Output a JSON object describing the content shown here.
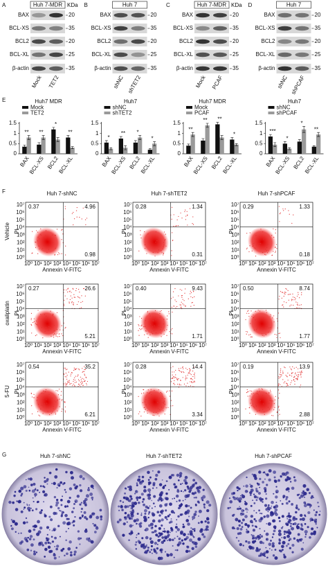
{
  "section_letters": {
    "e": "E",
    "f": "F",
    "g": "G"
  },
  "blots": {
    "panels": [
      {
        "letter": "A",
        "cell_line": "Huh 7-MDR",
        "unit": "KDa",
        "proteins": [
          "BAX",
          "BCL-XS",
          "BCL2",
          "BCL-XL",
          "β-actin"
        ],
        "markers": [
          20,
          35,
          20,
          25,
          35
        ],
        "lanes": [
          "Mock",
          "TET2"
        ]
      },
      {
        "letter": "B",
        "cell_line": "Huh 7",
        "proteins": [
          "BAX",
          "BCL-XS",
          "BCL2",
          "BCL-XL",
          "β-actin"
        ],
        "markers": [
          20,
          35,
          20,
          25,
          35
        ],
        "lanes": [
          "shNC",
          "shTET2"
        ]
      },
      {
        "letter": "C",
        "cell_line": "Huh 7-MDR",
        "unit": "KDa",
        "proteins": [
          "BAX",
          "BCL-XS",
          "BCL2",
          "BCL-XL",
          "β-actin"
        ],
        "markers": [
          20,
          35,
          20,
          25,
          35
        ],
        "lanes": [
          "Mock",
          "PCAF"
        ]
      },
      {
        "letter": "D",
        "cell_line": "Huh 7",
        "proteins": [
          "BAX",
          "BCL-XS",
          "BCL2",
          "BCL-XL",
          "β-actin"
        ],
        "markers": [
          20,
          35,
          20,
          25,
          35
        ],
        "lanes": [
          "shNC",
          "shPCAF"
        ]
      }
    ]
  },
  "chart_data": [
    {
      "type": "bar",
      "title": "Huh7 MDR",
      "categories": [
        "BAX",
        "BCL-XS",
        "BCL2",
        "BCL-XL"
      ],
      "series": [
        {
          "name": "Mock",
          "color": "#111111",
          "values": [
            0.35,
            0.45,
            1.2,
            0.8
          ],
          "errors": [
            0.08,
            0.1,
            0.1,
            0.1
          ]
        },
        {
          "name": "TET2",
          "color": "#9a9a9a",
          "values": [
            0.8,
            0.8,
            0.7,
            0.3
          ],
          "errors": [
            0.1,
            0.1,
            0.1,
            0.05
          ]
        }
      ],
      "annotations": [
        "**",
        "**",
        "*",
        "**"
      ],
      "ylim": [
        0,
        1.5
      ],
      "yticks": [
        0,
        0.5,
        1,
        1.5
      ]
    },
    {
      "type": "bar",
      "title": "Huh7",
      "categories": [
        "BAX",
        "BCL-XS",
        "BCL2",
        "BCL-XL"
      ],
      "series": [
        {
          "name": "shNC",
          "color": "#111111",
          "values": [
            0.55,
            0.75,
            0.55,
            0.2
          ],
          "errors": [
            0.1,
            0.1,
            0.1,
            0.05
          ]
        },
        {
          "name": "shTET2",
          "color": "#9a9a9a",
          "values": [
            0.25,
            0.3,
            0.8,
            0.5
          ],
          "errors": [
            0.05,
            0.1,
            0.1,
            0.1
          ]
        }
      ],
      "annotations": [
        "*",
        "**",
        "*",
        "*"
      ],
      "ylim": [
        0,
        1.5
      ],
      "yticks": [
        0,
        0.5,
        1,
        1.5
      ]
    },
    {
      "type": "bar",
      "title": "Huh7 MDR",
      "categories": [
        "BAX",
        "BCL-XS",
        "BCL2",
        "BCL-XL"
      ],
      "series": [
        {
          "name": "Mock",
          "color": "#111111",
          "values": [
            0.4,
            0.65,
            1.45,
            0.7
          ],
          "errors": [
            0.08,
            0.1,
            0.1,
            0.1
          ]
        },
        {
          "name": "PCAF",
          "color": "#9a9a9a",
          "values": [
            0.95,
            1.4,
            0.8,
            0.45
          ],
          "errors": [
            0.1,
            0.1,
            0.1,
            0.05
          ]
        }
      ],
      "annotations": [
        "**",
        "**",
        "**",
        "*"
      ],
      "ylim": [
        0,
        1.5
      ],
      "yticks": [
        0,
        0.5,
        1,
        1.5
      ]
    },
    {
      "type": "bar",
      "title": "Huh7",
      "categories": [
        "BAX",
        "BCL-XS",
        "BCL2",
        "BCL-XL"
      ],
      "series": [
        {
          "name": "shNC",
          "color": "#111111",
          "values": [
            0.85,
            0.5,
            0.6,
            0.35
          ],
          "errors": [
            0.1,
            0.1,
            0.1,
            0.05
          ]
        },
        {
          "name": "shPCAF",
          "color": "#9a9a9a",
          "values": [
            0.45,
            0.25,
            1.2,
            0.95
          ],
          "errors": [
            0.1,
            0.05,
            0.15,
            0.1
          ]
        }
      ],
      "annotations": [
        "***",
        "*",
        "*",
        "**"
      ],
      "ylim": [
        0,
        1.5
      ],
      "yticks": [
        0,
        0.5,
        1,
        1.5
      ]
    }
  ],
  "flow": {
    "columns": [
      "Huh 7-shNC",
      "Huh 7-shTET2",
      "Huh 7-shPCAF"
    ],
    "rows": [
      "Vehicle",
      "oxaliplatin",
      "5-FU"
    ],
    "x_label": "Annexin V-FITC",
    "y_label": "PI",
    "ticks": [
      "10⁰",
      "10¹",
      "10²",
      "10³",
      "10⁴",
      "10⁵",
      "10⁶",
      "10⁷"
    ],
    "quadrants": [
      [
        [
          "0.37",
          "4.96",
          "0.98"
        ],
        [
          "0.28",
          "1.34",
          "0.31"
        ],
        [
          "0.29",
          "1.33",
          "0.18"
        ]
      ],
      [
        [
          "0.27",
          "26.6",
          "5.21"
        ],
        [
          "0.40",
          "9.43",
          "1.71"
        ],
        [
          "0.50",
          "8.74",
          "1.77"
        ]
      ],
      [
        [
          "0.54",
          "35.2",
          "6.21"
        ],
        [
          "0.28",
          "14.4",
          "3.34"
        ],
        [
          "0.19",
          "13.9",
          "2.88"
        ]
      ]
    ]
  },
  "colonies": {
    "labels": [
      "Huh 7-shNC",
      "Huh 7-shTET2",
      "Huh 7-shPCAF"
    ]
  }
}
